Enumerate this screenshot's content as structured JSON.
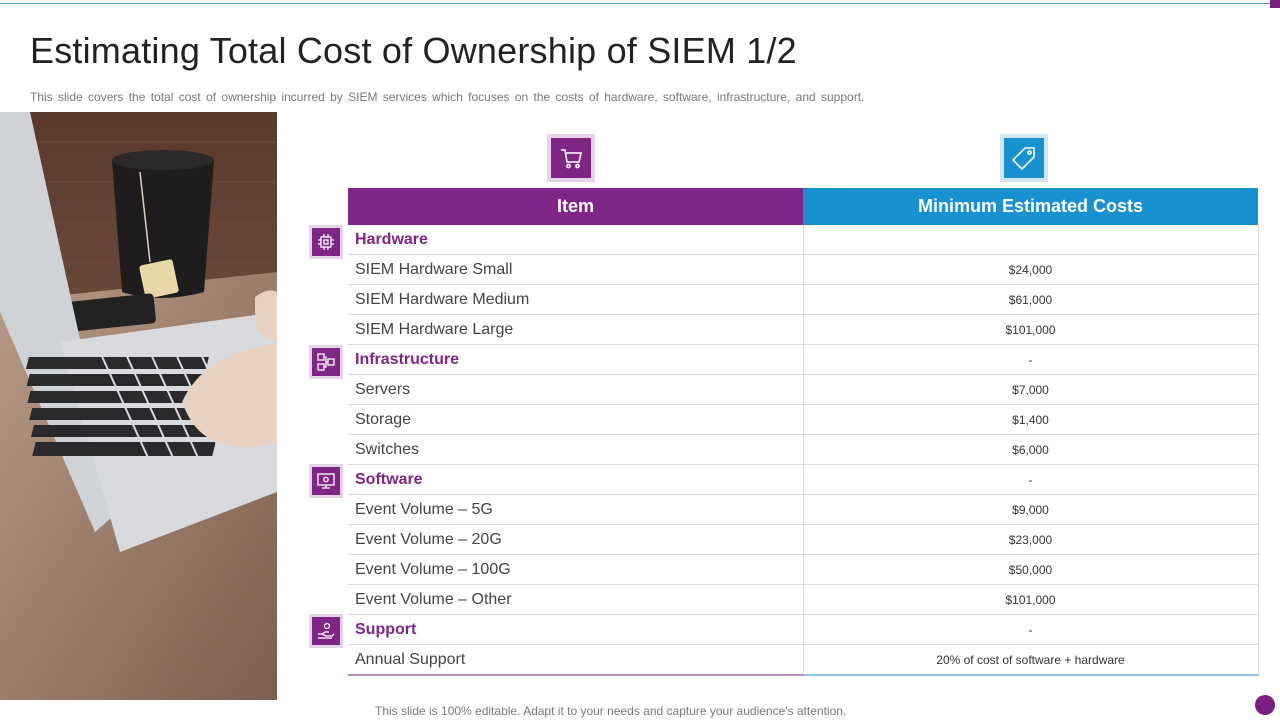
{
  "slide": {
    "title": "Estimating Total Cost of Ownership of SIEM 1/2",
    "subtitle": "This slide covers the total cost of ownership incurred by SIEM services which focuses on the costs of hardware, software, infrastructure, and support.",
    "footer": "This slide is 100% editable. Adapt it to your needs and capture your audience's attention."
  },
  "colors": {
    "purple": "#7e2586",
    "blue": "#1791cf"
  },
  "icons": {
    "item_header": "shopping-cart-icon",
    "cost_header": "price-tag-icon",
    "hardware": "chip-icon",
    "infrastructure": "network-icon",
    "software": "monitor-icon",
    "support": "hand-support-icon"
  },
  "table": {
    "headers": {
      "item": "Item",
      "cost": "Minimum Estimated Costs"
    },
    "rows": [
      {
        "item": "Hardware",
        "cost": "",
        "category": true
      },
      {
        "item": "SIEM Hardware Small",
        "cost": "$24,000"
      },
      {
        "item": "SIEM Hardware Medium",
        "cost": "$61,000"
      },
      {
        "item": "SIEM Hardware Large",
        "cost": "$101,000"
      },
      {
        "item": "Infrastructure",
        "cost": "-",
        "category": true
      },
      {
        "item": "Servers",
        "cost": "$7,000"
      },
      {
        "item": "Storage",
        "cost": "$1,400"
      },
      {
        "item": "Switches",
        "cost": "$6,000"
      },
      {
        "item": "Software",
        "cost": "-",
        "category": true
      },
      {
        "item": "Event Volume – 5G",
        "cost": "$9,000"
      },
      {
        "item": "Event Volume – 20G",
        "cost": "$23,000"
      },
      {
        "item": "Event Volume – 100G",
        "cost": "$50,000"
      },
      {
        "item": "Event Volume – Other",
        "cost": "$101,000"
      },
      {
        "item": "Support",
        "cost": "-",
        "category": true
      },
      {
        "item": "Annual Support",
        "cost": "20% of cost of software + hardware"
      }
    ]
  }
}
